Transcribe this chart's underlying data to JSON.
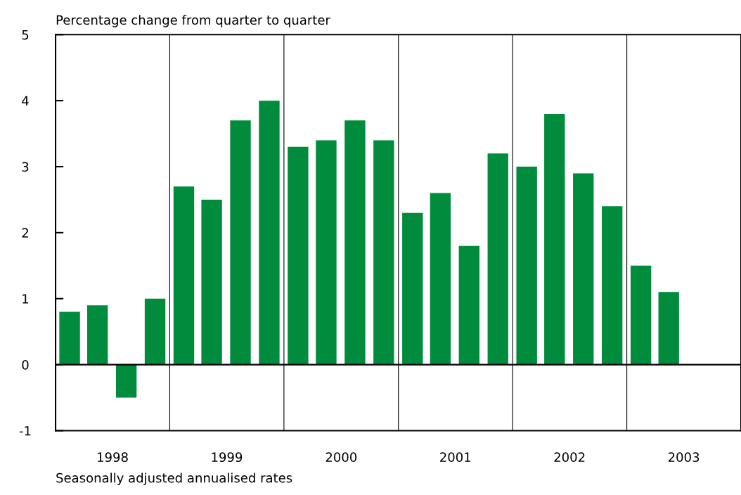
{
  "chart_data": {
    "type": "bar",
    "ylabel": "Percentage change from quarter to quarter",
    "x": [
      "1998-02-15",
      "1998-05-15",
      "1998-08-15",
      "1998-11-15",
      "1999-02-15",
      "1999-05-15",
      "1999-08-15",
      "1999-11-15",
      "2000-02-15",
      "2000-05-15",
      "2000-08-15",
      "2000-11-15",
      "2001-02-15",
      "2001-05-15",
      "2001-08-15",
      "2001-11-15",
      "2002-02-15",
      "2002-05-15",
      "2002-08-15",
      "2002-11-15",
      "2003-02-15",
      "2003-05-15"
    ],
    "values": [
      0.8,
      0.9,
      -0.5,
      1.0,
      2.7,
      2.5,
      3.7,
      4.0,
      3.3,
      3.4,
      3.7,
      3.4,
      2.3,
      2.6,
      1.8,
      3.2,
      3.0,
      3.8,
      2.9,
      2.4,
      1.5,
      1.1
    ],
    "color": "#008c3c",
    "xlim": [
      "1998-01-01",
      "2004-01-01"
    ],
    "xticks": [
      {
        "value": "1998-07-02",
        "label": "1998"
      },
      {
        "value": "1999-07-02",
        "label": "1999"
      },
      {
        "value": "2000-07-02",
        "label": "2000"
      },
      {
        "value": "2001-07-02",
        "label": "2001"
      },
      {
        "value": "2002-07-02",
        "label": "2002"
      },
      {
        "value": "2003-07-02",
        "label": "2003"
      }
    ],
    "ylim": [
      -1,
      5
    ],
    "yticks": [
      -1,
      0,
      1,
      2,
      3,
      4,
      5
    ],
    "ref_lines": [
      {
        "axis": "x",
        "value": "1999-01-01",
        "color": "#000000"
      },
      {
        "axis": "x",
        "value": "2000-01-01",
        "color": "#000000"
      },
      {
        "axis": "x",
        "value": "2001-01-01",
        "color": "#000000"
      },
      {
        "axis": "x",
        "value": "2002-01-01",
        "color": "#000000"
      },
      {
        "axis": "x",
        "value": "2003-01-01",
        "color": "#000000"
      },
      {
        "axis": "y",
        "value": 0,
        "color": "#000000"
      }
    ],
    "annotations": [
      "Seasonally adjusted annualised rates"
    ],
    "grid": false,
    "legend": false
  }
}
